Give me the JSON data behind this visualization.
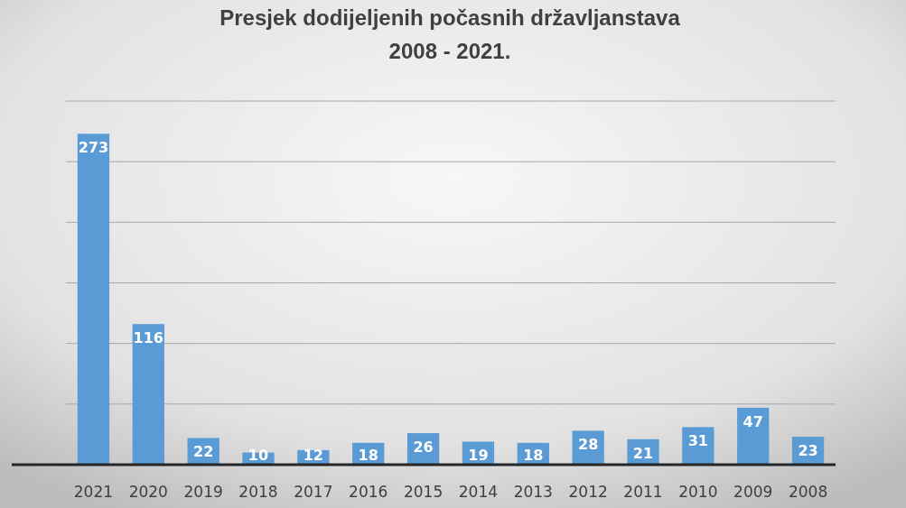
{
  "chart_data": {
    "type": "bar",
    "title": "Presjek dodijeljenih počasnih državljanstava\n2008 - 2021.",
    "categories": [
      "2021",
      "2020",
      "2019",
      "2018",
      "2017",
      "2016",
      "2015",
      "2014",
      "2013",
      "2012",
      "2011",
      "2010",
      "2009",
      "2008"
    ],
    "values": [
      273,
      116,
      22,
      10,
      12,
      18,
      26,
      19,
      18,
      28,
      21,
      31,
      47,
      23
    ],
    "color": "#5b9bd5",
    "ylim": [
      0,
      300
    ],
    "yticks": [
      {
        "value": 0,
        "label": null
      },
      {
        "value": 50,
        "label": null
      },
      {
        "value": 100,
        "label": null
      },
      {
        "value": 150,
        "label": null
      },
      {
        "value": 200,
        "label": null
      },
      {
        "value": 250,
        "label": null
      },
      {
        "value": 300,
        "label": null
      }
    ],
    "tick_labels": "x",
    "grid": "y",
    "data_labels": true
  }
}
